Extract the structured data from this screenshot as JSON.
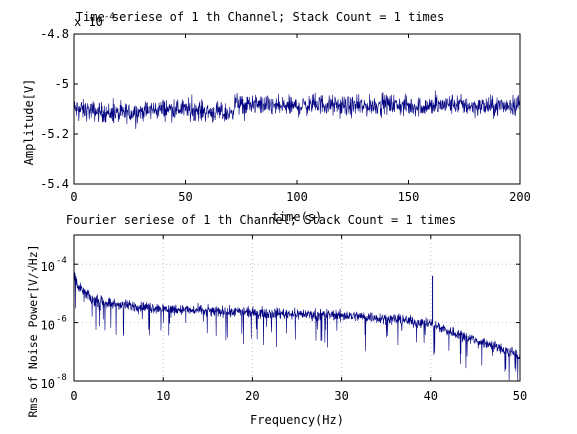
{
  "window": {
    "background": "#ffffff"
  },
  "chart_data": [
    {
      "type": "line",
      "title": "Time seriese of 1 th Channel; Stack Count = 1 times",
      "xlabel": "time(s)",
      "ylabel": "Amplitude[V]",
      "y_multiplier_label": "x 10",
      "y_multiplier_exponent": "-4",
      "xlim": [
        0,
        200
      ],
      "ylim": [
        -5.4,
        -4.8
      ],
      "xticks": [
        "0",
        "50",
        "100",
        "150",
        "200"
      ],
      "yticks": [
        "-4.8",
        "-5",
        "-5.2",
        "-5.4"
      ],
      "grid": false,
      "line_color": "#000080",
      "series": [
        {
          "x": [
            0,
            10,
            20,
            30,
            40,
            50,
            60,
            70,
            73,
            75,
            80,
            90,
            100,
            110,
            120,
            130,
            140,
            150,
            160,
            170,
            180,
            190,
            200
          ],
          "values": [
            -5.1,
            -5.11,
            -5.12,
            -5.11,
            -5.1,
            -5.1,
            -5.11,
            -5.12,
            -5.07,
            -5.09,
            -5.08,
            -5.09,
            -5.09,
            -5.08,
            -5.09,
            -5.09,
            -5.08,
            -5.09,
            -5.09,
            -5.08,
            -5.09,
            -5.09,
            -5.08
          ],
          "noise_halfwidth": 0.06
        }
      ]
    },
    {
      "type": "line",
      "title": "Fourier seriese of 1 th Channel; Stack Count = 1 times",
      "xlabel": "Frequency(Hz)",
      "ylabel": "Rms of Noise Power[V/√Hz]",
      "xlim": [
        0,
        50
      ],
      "ylim": [
        1e-08,
        0.001
      ],
      "yscale": "log",
      "xticks": [
        "0",
        "10",
        "20",
        "30",
        "40",
        "50"
      ],
      "yticks": [
        {
          "base": "10",
          "exp": "-4"
        },
        {
          "base": "10",
          "exp": "-6"
        },
        {
          "base": "10",
          "exp": "-8"
        }
      ],
      "grid": true,
      "line_color": "#000080",
      "series": [
        {
          "x": [
            0,
            0.5,
            2,
            5,
            10,
            15,
            20,
            25,
            30,
            35,
            38,
            40,
            40.2,
            40.5,
            42,
            45,
            48,
            50
          ],
          "values": [
            5e-05,
            1.5e-05,
            6e-06,
            4e-06,
            3e-06,
            2.5e-06,
            2.2e-06,
            2e-06,
            1.8e-06,
            1.4e-06,
            1.1e-06,
            9e-07,
            4e-05,
            8e-07,
            5e-07,
            2.5e-07,
            1.2e-07,
            7e-08
          ]
        }
      ]
    }
  ]
}
